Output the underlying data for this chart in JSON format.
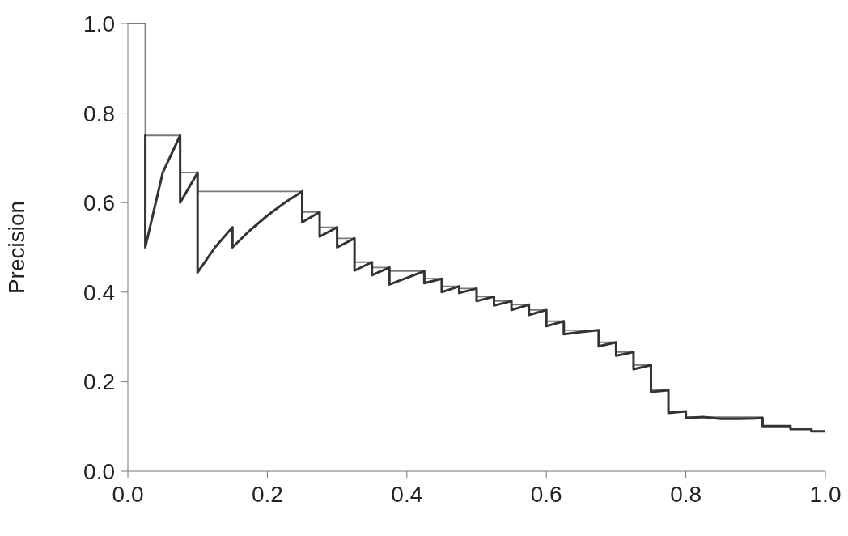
{
  "chart_data": {
    "type": "line",
    "ylabel": "Precision",
    "xlim": [
      0,
      1
    ],
    "xticks": [
      {
        "value": 0,
        "label": "0.0"
      },
      {
        "value": 0.2,
        "label": "0.2"
      },
      {
        "value": 0.4,
        "label": "0.4"
      },
      {
        "value": 0.6,
        "label": "0.6"
      },
      {
        "value": 0.8,
        "label": "0.8"
      },
      {
        "value": 1,
        "label": "1.0"
      }
    ],
    "ylim": [
      0,
      1
    ],
    "yticks": [
      {
        "value": 0,
        "label": "0.0"
      },
      {
        "value": 0.2,
        "label": "0.2"
      },
      {
        "value": 0.4,
        "label": "0.4"
      },
      {
        "value": 0.6,
        "label": "0.6"
      },
      {
        "value": 0.8,
        "label": "0.8"
      },
      {
        "value": 1,
        "label": "1.0"
      }
    ],
    "grid": false,
    "legend": false,
    "series": [
      {
        "color": "#7a7a7a",
        "x": [
          0,
          0.025,
          0.025,
          0.075,
          0.075,
          0.1,
          0.1,
          0.25,
          0.25,
          0.275,
          0.275,
          0.3,
          0.3,
          0.325,
          0.325,
          0.35,
          0.35,
          0.375,
          0.375,
          0.425,
          0.425,
          0.45,
          0.45,
          0.475,
          0.475,
          0.5,
          0.5,
          0.525,
          0.525,
          0.55,
          0.55,
          0.575,
          0.575,
          0.6,
          0.6,
          0.625,
          0.625,
          0.675,
          0.675,
          0.7,
          0.7,
          0.725,
          0.725,
          0.75,
          0.75,
          0.775,
          0.775,
          0.8,
          0.8,
          0.91,
          0.91,
          0.95,
          0.95,
          0.98,
          0.98,
          1.0
        ],
        "values": [
          1,
          1,
          0.75,
          0.75,
          0.667,
          0.667,
          0.625,
          0.625,
          0.579,
          0.579,
          0.545,
          0.545,
          0.52,
          0.52,
          0.467,
          0.467,
          0.455,
          0.455,
          0.447,
          0.447,
          0.43,
          0.43,
          0.413,
          0.413,
          0.408,
          0.408,
          0.39,
          0.39,
          0.38,
          0.38,
          0.372,
          0.372,
          0.36,
          0.36,
          0.335,
          0.335,
          0.315,
          0.315,
          0.288,
          0.288,
          0.266,
          0.266,
          0.237,
          0.237,
          0.181,
          0.181,
          0.134,
          0.134,
          0.121,
          0.121,
          0.101,
          0.101,
          0.094,
          0.094,
          0.089,
          0.089
        ]
      },
      {
        "color": "#333333",
        "x": [
          0.025,
          0.025,
          0.05,
          0.075,
          0.075,
          0.1,
          0.1,
          0.125,
          0.15,
          0.15,
          0.175,
          0.2,
          0.225,
          0.25,
          0.25,
          0.275,
          0.275,
          0.3,
          0.3,
          0.325,
          0.325,
          0.35,
          0.35,
          0.375,
          0.375,
          0.4,
          0.425,
          0.425,
          0.45,
          0.45,
          0.475,
          0.475,
          0.5,
          0.5,
          0.525,
          0.525,
          0.55,
          0.55,
          0.575,
          0.575,
          0.6,
          0.6,
          0.625,
          0.625,
          0.65,
          0.675,
          0.675,
          0.7,
          0.7,
          0.725,
          0.725,
          0.75,
          0.75,
          0.775,
          0.775,
          0.8,
          0.8,
          0.825,
          0.85,
          0.875,
          0.9,
          0.91,
          0.91,
          0.95,
          0.95,
          0.98,
          0.98,
          1.0
        ],
        "values": [
          0.75,
          0.5,
          0.667,
          0.75,
          0.6,
          0.667,
          0.444,
          0.5,
          0.545,
          0.5,
          0.538,
          0.571,
          0.6,
          0.625,
          0.556,
          0.579,
          0.524,
          0.545,
          0.5,
          0.52,
          0.448,
          0.467,
          0.438,
          0.455,
          0.417,
          0.432,
          0.447,
          0.42,
          0.43,
          0.4,
          0.413,
          0.398,
          0.408,
          0.38,
          0.39,
          0.37,
          0.38,
          0.36,
          0.372,
          0.349,
          0.36,
          0.324,
          0.335,
          0.306,
          0.311,
          0.315,
          0.279,
          0.288,
          0.258,
          0.266,
          0.228,
          0.237,
          0.177,
          0.181,
          0.13,
          0.134,
          0.119,
          0.121,
          0.117,
          0.117,
          0.118,
          0.119,
          0.101,
          0.101,
          0.094,
          0.094,
          0.089,
          0.089
        ]
      }
    ]
  }
}
